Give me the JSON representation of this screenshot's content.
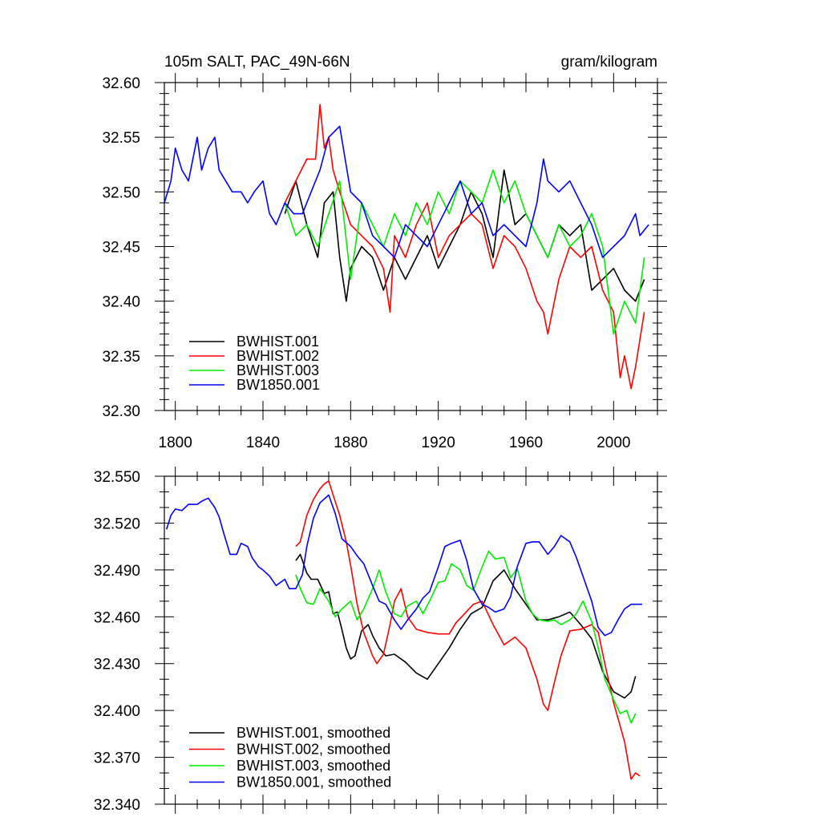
{
  "chart_data": [
    {
      "type": "line",
      "title": "105m SALT, PAC_49N-66N",
      "units": "gram/kilogram",
      "xlim": [
        1795,
        2020
      ],
      "ylim": [
        32.3,
        32.6
      ],
      "x_ticks": [
        1800,
        1840,
        1880,
        1920,
        1960,
        2000
      ],
      "y_ticks": [
        "32.30",
        "32.35",
        "32.40",
        "32.45",
        "32.50",
        "32.55",
        "32.60"
      ],
      "legend_position": "bottom-left",
      "series": [
        {
          "name": "BWHIST.001",
          "color": "#000000",
          "x": [
            1850,
            1855,
            1860,
            1865,
            1868,
            1872,
            1875,
            1878,
            1880,
            1885,
            1890,
            1895,
            1900,
            1905,
            1910,
            1915,
            1920,
            1925,
            1930,
            1935,
            1940,
            1945,
            1950,
            1955,
            1960,
            1965,
            1970,
            1975,
            1980,
            1985,
            1990,
            1995,
            2000,
            2005,
            2010,
            2014
          ],
          "values": [
            32.48,
            32.51,
            32.47,
            32.44,
            32.49,
            32.5,
            32.44,
            32.4,
            32.43,
            32.45,
            32.44,
            32.41,
            32.44,
            32.42,
            32.44,
            32.46,
            32.43,
            32.45,
            32.47,
            32.5,
            32.48,
            32.44,
            32.52,
            32.47,
            32.48,
            32.46,
            32.44,
            32.47,
            32.46,
            32.47,
            32.41,
            32.42,
            32.43,
            32.41,
            32.4,
            32.42
          ]
        },
        {
          "name": "BWHIST.002",
          "color": "#ff0000",
          "x": [
            1850,
            1855,
            1860,
            1864,
            1866,
            1868,
            1870,
            1872,
            1875,
            1880,
            1885,
            1890,
            1895,
            1898,
            1900,
            1905,
            1910,
            1915,
            1920,
            1925,
            1930,
            1935,
            1940,
            1945,
            1950,
            1955,
            1960,
            1965,
            1968,
            1970,
            1975,
            1980,
            1985,
            1990,
            1995,
            2000,
            2003,
            2005,
            2008,
            2010,
            2014
          ],
          "values": [
            32.49,
            32.51,
            32.53,
            32.53,
            32.58,
            32.54,
            32.55,
            32.52,
            32.5,
            32.47,
            32.46,
            32.45,
            32.43,
            32.39,
            32.46,
            32.44,
            32.47,
            32.49,
            32.44,
            32.46,
            32.47,
            32.48,
            32.47,
            32.43,
            32.46,
            32.45,
            32.43,
            32.4,
            32.39,
            32.37,
            32.42,
            32.45,
            32.44,
            32.45,
            32.41,
            32.39,
            32.33,
            32.35,
            32.32,
            32.34,
            32.39
          ]
        },
        {
          "name": "BWHIST.003",
          "color": "#00ee00",
          "x": [
            1850,
            1855,
            1860,
            1865,
            1870,
            1875,
            1880,
            1885,
            1890,
            1895,
            1900,
            1905,
            1910,
            1915,
            1920,
            1925,
            1930,
            1935,
            1940,
            1945,
            1950,
            1955,
            1960,
            1965,
            1970,
            1975,
            1980,
            1985,
            1990,
            1995,
            2000,
            2005,
            2010,
            2014
          ],
          "values": [
            32.49,
            32.46,
            32.47,
            32.45,
            32.48,
            32.51,
            32.42,
            32.49,
            32.47,
            32.45,
            32.48,
            32.46,
            32.49,
            32.47,
            32.5,
            32.48,
            32.51,
            32.5,
            32.49,
            32.52,
            32.49,
            32.51,
            32.48,
            32.46,
            32.44,
            32.47,
            32.45,
            32.46,
            32.48,
            32.45,
            32.37,
            32.4,
            32.38,
            32.44
          ]
        },
        {
          "name": "BW1850.001",
          "color": "#0000ff",
          "x": [
            1795,
            1798,
            1800,
            1803,
            1806,
            1810,
            1812,
            1815,
            1818,
            1820,
            1823,
            1826,
            1830,
            1833,
            1836,
            1840,
            1843,
            1846,
            1850,
            1854,
            1858,
            1862,
            1866,
            1870,
            1875,
            1880,
            1885,
            1890,
            1895,
            1900,
            1905,
            1910,
            1915,
            1920,
            1925,
            1930,
            1935,
            1940,
            1945,
            1950,
            1955,
            1960,
            1965,
            1968,
            1970,
            1975,
            1980,
            1985,
            1990,
            1995,
            2000,
            2005,
            2010,
            2012,
            2016
          ],
          "values": [
            32.49,
            32.51,
            32.54,
            32.52,
            32.51,
            32.55,
            32.52,
            32.54,
            32.55,
            32.52,
            32.51,
            32.5,
            32.5,
            32.49,
            32.5,
            32.51,
            32.48,
            32.47,
            32.49,
            32.48,
            32.48,
            32.5,
            32.52,
            32.55,
            32.56,
            32.5,
            32.49,
            32.46,
            32.45,
            32.44,
            32.47,
            32.46,
            32.45,
            32.47,
            32.49,
            32.51,
            32.48,
            32.49,
            32.46,
            32.47,
            32.46,
            32.45,
            32.49,
            32.53,
            32.51,
            32.5,
            32.51,
            32.49,
            32.47,
            32.44,
            32.45,
            32.46,
            32.48,
            32.46,
            32.47
          ]
        }
      ]
    },
    {
      "type": "line",
      "xlim": [
        1795,
        2020
      ],
      "ylim": [
        32.34,
        32.55
      ],
      "x_ticks": [
        1800,
        1840,
        1880,
        1920,
        1960,
        2000
      ],
      "y_ticks": [
        "32.340",
        "32.370",
        "32.400",
        "32.430",
        "32.460",
        "32.490",
        "32.520",
        "32.550"
      ],
      "legend_position": "bottom-left",
      "series": [
        {
          "name": "BWHIST.001, smoothed",
          "color": "#000000",
          "x": [
            1855,
            1857,
            1860,
            1862,
            1865,
            1868,
            1870,
            1872,
            1874,
            1876,
            1878,
            1880,
            1882,
            1885,
            1888,
            1890,
            1893,
            1896,
            1900,
            1905,
            1910,
            1915,
            1920,
            1925,
            1930,
            1935,
            1940,
            1945,
            1950,
            1955,
            1960,
            1965,
            1970,
            1975,
            1980,
            1985,
            1990,
            1995,
            2000,
            2005,
            2008,
            2010
          ],
          "values": [
            32.496,
            32.5,
            32.488,
            32.484,
            32.484,
            32.475,
            32.476,
            32.462,
            32.463,
            32.452,
            32.44,
            32.433,
            32.435,
            32.451,
            32.455,
            32.448,
            32.44,
            32.435,
            32.436,
            32.431,
            32.424,
            32.42,
            32.43,
            32.44,
            32.452,
            32.462,
            32.466,
            32.483,
            32.49,
            32.478,
            32.468,
            32.458,
            32.458,
            32.46,
            32.463,
            32.455,
            32.446,
            32.425,
            32.412,
            32.408,
            32.412,
            32.422
          ]
        },
        {
          "name": "BWHIST.002, smoothed",
          "color": "#ff0000",
          "x": [
            1855,
            1857,
            1860,
            1863,
            1866,
            1868,
            1870,
            1872,
            1875,
            1878,
            1880,
            1883,
            1886,
            1890,
            1892,
            1895,
            1898,
            1900,
            1903,
            1906,
            1910,
            1915,
            1920,
            1925,
            1928,
            1932,
            1936,
            1940,
            1945,
            1950,
            1955,
            1960,
            1965,
            1968,
            1970,
            1973,
            1976,
            1980,
            1985,
            1990,
            1993,
            1996,
            2000,
            2005,
            2008,
            2010,
            2012
          ],
          "values": [
            32.505,
            32.508,
            32.525,
            32.535,
            32.542,
            32.545,
            32.547,
            32.538,
            32.525,
            32.508,
            32.493,
            32.468,
            32.45,
            32.435,
            32.43,
            32.436,
            32.455,
            32.47,
            32.478,
            32.46,
            32.452,
            32.45,
            32.449,
            32.449,
            32.456,
            32.462,
            32.468,
            32.47,
            32.455,
            32.442,
            32.447,
            32.44,
            32.42,
            32.404,
            32.4,
            32.418,
            32.435,
            32.451,
            32.452,
            32.455,
            32.45,
            32.43,
            32.405,
            32.38,
            32.356,
            32.36,
            32.358
          ]
        },
        {
          "name": "BWHIST.003, smoothed",
          "color": "#00ee00",
          "x": [
            1855,
            1857,
            1860,
            1863,
            1866,
            1870,
            1873,
            1876,
            1880,
            1883,
            1886,
            1890,
            1893,
            1896,
            1900,
            1903,
            1906,
            1910,
            1913,
            1916,
            1920,
            1923,
            1926,
            1930,
            1933,
            1936,
            1940,
            1943,
            1946,
            1950,
            1953,
            1956,
            1960,
            1963,
            1966,
            1970,
            1973,
            1976,
            1980,
            1983,
            1986,
            1990,
            1993,
            1996,
            2000,
            2003,
            2006,
            2008,
            2010
          ],
          "values": [
            32.487,
            32.478,
            32.469,
            32.468,
            32.478,
            32.47,
            32.46,
            32.465,
            32.47,
            32.458,
            32.465,
            32.478,
            32.49,
            32.476,
            32.462,
            32.46,
            32.467,
            32.47,
            32.462,
            32.47,
            32.482,
            32.483,
            32.494,
            32.49,
            32.48,
            32.477,
            32.492,
            32.502,
            32.497,
            32.498,
            32.485,
            32.491,
            32.47,
            32.462,
            32.458,
            32.457,
            32.458,
            32.455,
            32.458,
            32.462,
            32.47,
            32.457,
            32.44,
            32.42,
            32.407,
            32.398,
            32.4,
            32.392,
            32.398
          ]
        },
        {
          "name": "BW1850.001, smoothed",
          "color": "#0000ff",
          "x": [
            1796,
            1798,
            1800,
            1803,
            1806,
            1810,
            1812,
            1815,
            1818,
            1820,
            1822,
            1825,
            1828,
            1830,
            1833,
            1835,
            1838,
            1840,
            1843,
            1846,
            1850,
            1852,
            1855,
            1858,
            1860,
            1863,
            1866,
            1870,
            1873,
            1876,
            1880,
            1883,
            1886,
            1890,
            1893,
            1896,
            1900,
            1903,
            1906,
            1910,
            1913,
            1916,
            1920,
            1923,
            1926,
            1930,
            1933,
            1936,
            1940,
            1943,
            1946,
            1950,
            1953,
            1956,
            1960,
            1963,
            1966,
            1970,
            1973,
            1976,
            1980,
            1983,
            1986,
            1990,
            1993,
            1996,
            1999,
            2002,
            2005,
            2008,
            2010,
            2013
          ],
          "values": [
            32.516,
            32.525,
            32.529,
            32.528,
            32.532,
            32.532,
            32.534,
            32.536,
            32.53,
            32.524,
            32.514,
            32.5,
            32.5,
            32.507,
            32.505,
            32.498,
            32.492,
            32.49,
            32.486,
            32.48,
            32.484,
            32.478,
            32.478,
            32.487,
            32.505,
            32.523,
            32.533,
            32.538,
            32.526,
            32.51,
            32.505,
            32.499,
            32.494,
            32.48,
            32.47,
            32.468,
            32.458,
            32.452,
            32.458,
            32.465,
            32.472,
            32.476,
            32.492,
            32.505,
            32.507,
            32.509,
            32.496,
            32.478,
            32.468,
            32.466,
            32.463,
            32.465,
            32.473,
            32.492,
            32.507,
            32.508,
            32.508,
            32.5,
            32.505,
            32.512,
            32.508,
            32.498,
            32.486,
            32.47,
            32.453,
            32.448,
            32.45,
            32.458,
            32.465,
            32.468,
            32.468,
            32.468
          ]
        }
      ]
    }
  ]
}
